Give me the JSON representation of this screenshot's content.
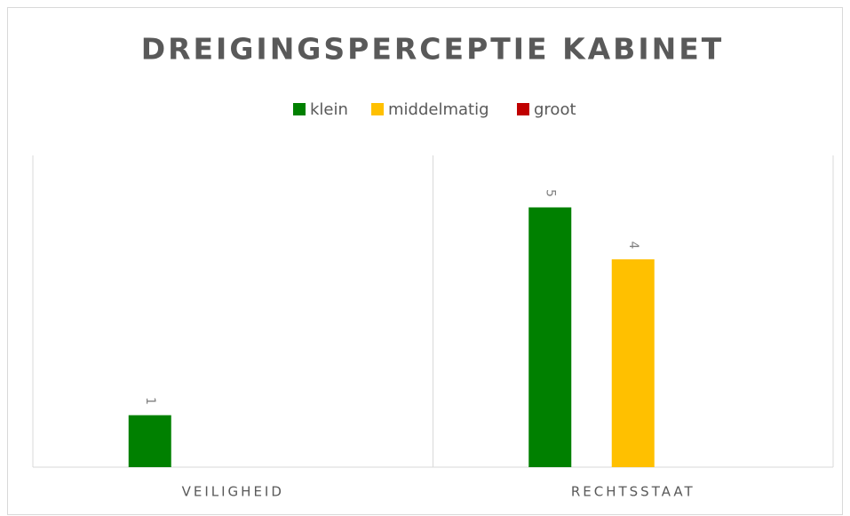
{
  "chart_data": {
    "type": "bar",
    "title": "DREIGINGSPERCEPTIE KABINET",
    "categories": [
      "VEILIGHEID",
      "RECHTSSTAAT"
    ],
    "series": [
      {
        "name": "klein",
        "color": "#008000",
        "values": [
          1,
          5
        ]
      },
      {
        "name": "middelmatig",
        "color": "#ffc000",
        "values": [
          null,
          4
        ]
      },
      {
        "name": "groot",
        "color": "#c00000",
        "values": [
          null,
          null
        ]
      }
    ],
    "ylim": [
      0,
      6
    ],
    "legend": "top"
  }
}
